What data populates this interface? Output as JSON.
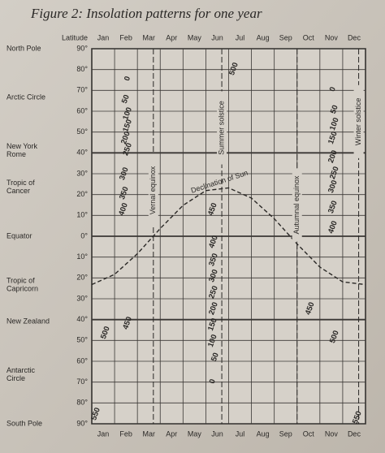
{
  "chart_data": {
    "type": "contour",
    "title": "Figure 2: Insolation patterns for one year",
    "y_label": "Latitude",
    "categories": [
      "Jan",
      "Feb",
      "Mar",
      "Apr",
      "May",
      "Jun",
      "Jul",
      "Aug",
      "Sep",
      "Oct",
      "Nov",
      "Dec"
    ],
    "xlim": [
      0,
      12
    ],
    "ylim": [
      -90,
      90
    ],
    "yticks": [
      {
        "value": 90,
        "label": "90°"
      },
      {
        "value": 80,
        "label": "80°"
      },
      {
        "value": 70,
        "label": "70°"
      },
      {
        "value": 60,
        "label": "60°"
      },
      {
        "value": 50,
        "label": "50°"
      },
      {
        "value": 40,
        "label": "40°"
      },
      {
        "value": 30,
        "label": "30°"
      },
      {
        "value": 20,
        "label": "20°"
      },
      {
        "value": 10,
        "label": "10°"
      },
      {
        "value": 0,
        "label": "0°"
      },
      {
        "value": -10,
        "label": "10°"
      },
      {
        "value": -20,
        "label": "20°"
      },
      {
        "value": -30,
        "label": "30°"
      },
      {
        "value": -40,
        "label": "40°"
      },
      {
        "value": -50,
        "label": "50°"
      },
      {
        "value": -60,
        "label": "60°"
      },
      {
        "value": -70,
        "label": "70°"
      },
      {
        "value": -80,
        "label": "80°"
      },
      {
        "value": -90,
        "label": "90°"
      }
    ],
    "grid": true,
    "places": [
      {
        "lines": [
          "North Pole"
        ],
        "lat": 90
      },
      {
        "lines": [
          "Arctic Circle"
        ],
        "lat": 66.5
      },
      {
        "lines": [
          "New York",
          "Rome"
        ],
        "lat": 41
      },
      {
        "lines": [
          "Tropic of",
          "Cancer"
        ],
        "lat": 23.5
      },
      {
        "lines": [
          "Equator"
        ],
        "lat": 0
      },
      {
        "lines": [
          "Tropic of",
          "Capricorn"
        ],
        "lat": -23.5
      },
      {
        "lines": [
          "New Zealand"
        ],
        "lat": -41
      },
      {
        "lines": [
          "Antarctic",
          "Circle"
        ],
        "lat": -66.5
      },
      {
        "lines": [
          "South Pole"
        ],
        "lat": -90
      }
    ],
    "contour_labels": [
      {
        "label": "0",
        "x": 1.57,
        "y": 75.6
      },
      {
        "label": "50",
        "x": 1.49,
        "y": 65.8
      },
      {
        "label": "100",
        "x": 1.57,
        "y": 58.8
      },
      {
        "label": "150",
        "x": 1.57,
        "y": 53
      },
      {
        "label": "200",
        "x": 1.49,
        "y": 47.2
      },
      {
        "label": "250",
        "x": 1.57,
        "y": 41.7
      },
      {
        "label": "300",
        "x": 1.42,
        "y": 30
      },
      {
        "label": "350",
        "x": 1.42,
        "y": 20.7
      },
      {
        "label": "400",
        "x": 1.39,
        "y": 12.9
      },
      {
        "label": "0",
        "x": 10.57,
        "y": 70.5
      },
      {
        "label": "50",
        "x": 10.64,
        "y": 60.8
      },
      {
        "label": "100",
        "x": 10.64,
        "y": 53.8
      },
      {
        "label": "150",
        "x": 10.57,
        "y": 47.2
      },
      {
        "label": "200",
        "x": 10.57,
        "y": 38.2
      },
      {
        "label": "250",
        "x": 10.64,
        "y": 30.4
      },
      {
        "label": "300",
        "x": 10.57,
        "y": 23.8
      },
      {
        "label": "350",
        "x": 10.57,
        "y": 14
      },
      {
        "label": "400",
        "x": 10.57,
        "y": 4.3
      },
      {
        "label": "500",
        "x": 6.23,
        "y": 80.3
      },
      {
        "label": "450",
        "x": 5.3,
        "y": 12.9
      },
      {
        "label": "400",
        "x": 5.34,
        "y": -2.7
      },
      {
        "label": "350",
        "x": 5.34,
        "y": -11.3
      },
      {
        "label": "300",
        "x": 5.34,
        "y": -19
      },
      {
        "label": "250",
        "x": 5.34,
        "y": -26.9
      },
      {
        "label": "200",
        "x": 5.34,
        "y": -34.7
      },
      {
        "label": "150",
        "x": 5.3,
        "y": -42.4
      },
      {
        "label": "100",
        "x": 5.3,
        "y": -50.2
      },
      {
        "label": "50",
        "x": 5.41,
        "y": -58
      },
      {
        "label": "0",
        "x": 5.3,
        "y": -69.7
      },
      {
        "label": "500",
        "x": 0.6,
        "y": -46.3
      },
      {
        "label": "450",
        "x": 1.57,
        "y": -41.7
      },
      {
        "label": "450",
        "x": 9.57,
        "y": -34.7
      },
      {
        "label": "500",
        "x": 10.64,
        "y": -48.3
      },
      {
        "label": "550",
        "x": 0.18,
        "y": -85.3
      },
      {
        "label": "550",
        "x": 11.64,
        "y": -87
      }
    ],
    "annotations": [
      {
        "text": "Vernal equinox",
        "x": 2.7,
        "y": 22
      },
      {
        "text": "Summer solstice",
        "x": 5.7,
        "y": 52
      },
      {
        "text": "Autumnal equinox",
        "x": 9.0,
        "y": 15
      },
      {
        "text": "Winter solstice",
        "x": 11.7,
        "y": 55
      }
    ],
    "declination": {
      "name": "Declination of Sun",
      "x": [
        0,
        1,
        2,
        3,
        4,
        5,
        6,
        7,
        8,
        9,
        10,
        11,
        12
      ],
      "values": [
        -23.2,
        -18.3,
        -8.4,
        3.7,
        14.8,
        21.9,
        23.2,
        18.3,
        8.4,
        -3.7,
        -14.8,
        -21.9,
        -23.2
      ]
    }
  }
}
